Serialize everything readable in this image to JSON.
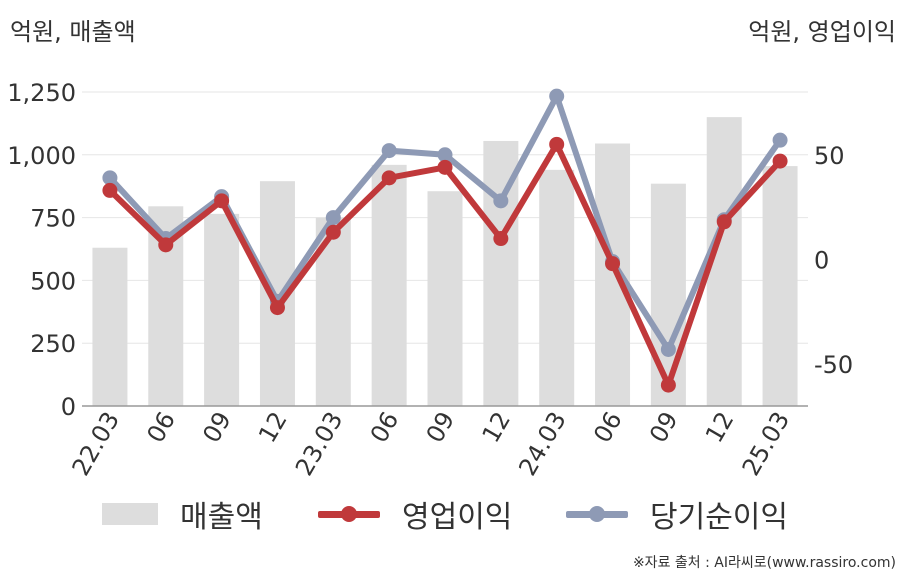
{
  "units": {
    "left": "억원, 매출액",
    "right": "억원, 영업이익"
  },
  "source": "※자료 출처 : AI라씨로(www.rassiro.com)",
  "colors": {
    "revenue": "#dddddd",
    "operating_income": "#c0393b",
    "net_income": "#8e9ab5"
  },
  "chart_data": {
    "type": "bar",
    "categories": [
      "22.03",
      "06",
      "09",
      "12",
      "23.03",
      "06",
      "09",
      "12",
      "24.03",
      "06",
      "09",
      "12",
      "25.03"
    ],
    "y_left": {
      "ticks": [
        "0",
        "250",
        "500",
        "750",
        "1,000",
        "1,250"
      ],
      "ylim": [
        0,
        1250
      ]
    },
    "y_right": {
      "ticks": [
        "-50",
        "0",
        "50"
      ],
      "ylim": [
        -70,
        80
      ]
    },
    "grid": true,
    "legend_position": "bottom",
    "series": [
      {
        "name": "매출액",
        "type": "bar",
        "axis": "left",
        "color": "#dddddd",
        "values": [
          630,
          795,
          765,
          895,
          750,
          960,
          855,
          1055,
          940,
          1045,
          885,
          1150,
          955
        ]
      },
      {
        "name": "영업이익",
        "type": "line",
        "axis": "right",
        "color": "#c0393b",
        "values": [
          33,
          7,
          28,
          -23,
          13,
          39,
          44,
          10,
          55,
          -2,
          -60,
          18,
          47
        ]
      },
      {
        "name": "당기순이익",
        "type": "line",
        "axis": "right",
        "color": "#8e9ab5",
        "values": [
          39,
          10,
          30,
          -20,
          20,
          52,
          50,
          28,
          78,
          -1,
          -43,
          19,
          57
        ]
      }
    ]
  }
}
